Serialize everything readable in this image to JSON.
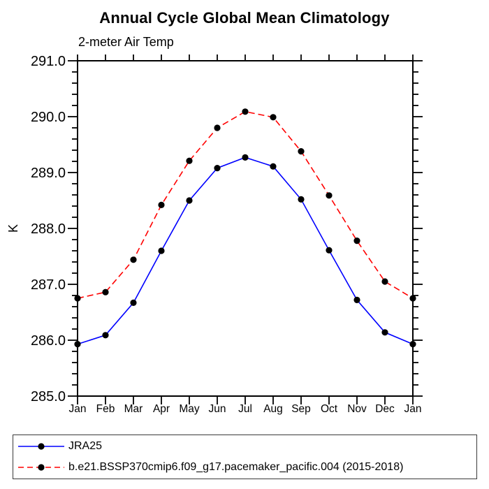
{
  "title": "Annual Cycle Global Mean Climatology",
  "subtitle": "2-meter Air Temp",
  "chart_data": {
    "type": "line",
    "categories": [
      "Jan",
      "Feb",
      "Mar",
      "Apr",
      "May",
      "Jun",
      "Jul",
      "Aug",
      "Sep",
      "Oct",
      "Nov",
      "Dec",
      "Jan"
    ],
    "series": [
      {
        "name": "JRA25",
        "color": "#0000ff",
        "line_style": "solid",
        "marker": "filled-circle",
        "marker_color": "#000000",
        "values": [
          285.93,
          286.09,
          286.67,
          287.6,
          288.5,
          289.08,
          289.27,
          289.11,
          288.52,
          287.61,
          286.72,
          286.14,
          285.93
        ]
      },
      {
        "name": "b.e21.BSSP370cmip6.f09_g17.pacemaker_pacific.004 (2015-2018)",
        "color": "#ff0000",
        "line_style": "dashed",
        "marker": "filled-circle",
        "marker_color": "#000000",
        "values": [
          286.75,
          286.86,
          287.44,
          288.42,
          289.21,
          289.8,
          290.09,
          289.99,
          289.38,
          288.59,
          287.78,
          287.05,
          286.75
        ]
      }
    ],
    "xlabel": "",
    "ylabel": "K",
    "ylim": [
      285.0,
      291.0
    ],
    "y_major_step": 1.0,
    "y_minor_step": 0.2,
    "y_tick_labels": [
      "285.0",
      "286.0",
      "287.0",
      "288.0",
      "289.0",
      "290.0",
      "291.0"
    ],
    "grid": false,
    "axis_color": "#000000",
    "legend_position": "bottom-left-box"
  }
}
